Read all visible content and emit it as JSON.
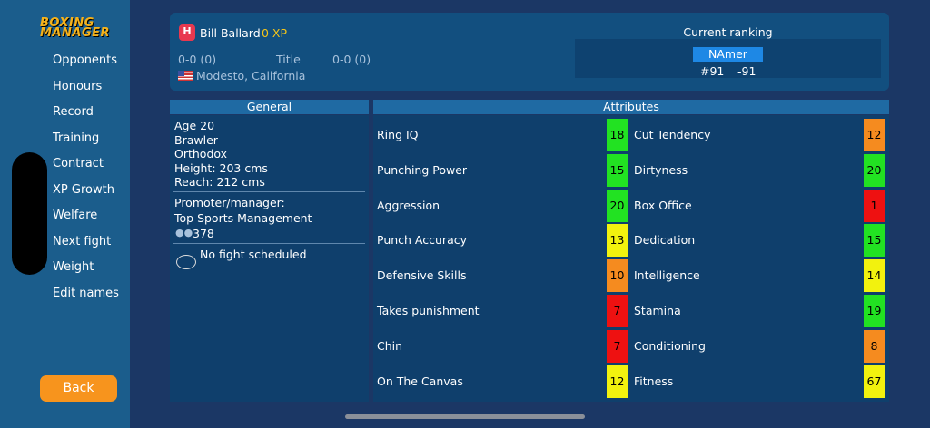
{
  "logo": "BOXING MANAGER",
  "nav": [
    "Opponents",
    "Honours",
    "Record",
    "Training",
    "Contract",
    "XP Growth",
    "Welfare",
    "Next fight",
    "Weight",
    "Edit names"
  ],
  "back_button": "Back",
  "profile": {
    "badge": "H",
    "name": "Bill Ballard",
    "xp": "0 XP",
    "record": "0-0 (0)",
    "title_label": "Title",
    "title_record": "0-0 (0)",
    "location": "Modesto, California"
  },
  "ranking": {
    "title": "Current ranking",
    "region": "NAmer",
    "rank": "#91",
    "change": "-91"
  },
  "general": {
    "header": "General",
    "lines": [
      "Age 20",
      "Brawler",
      "Orthodox",
      "Height: 203 cms",
      "Reach: 212 cms"
    ],
    "promoter_label": "Promoter/manager:",
    "promoter": "Top Sports Management",
    "fans": "378",
    "next_fight": "No fight scheduled"
  },
  "attributes": {
    "header": "Attributes",
    "left": [
      {
        "name": "Ring IQ",
        "value": "18",
        "color": "#22e222"
      },
      {
        "name": "Punching Power",
        "value": "15",
        "color": "#22e222"
      },
      {
        "name": "Aggression",
        "value": "20",
        "color": "#22e222"
      },
      {
        "name": "Punch Accuracy",
        "value": "13",
        "color": "#f2f20e"
      },
      {
        "name": "Defensive Skills",
        "value": "10",
        "color": "#f58b1f"
      },
      {
        "name": "Takes punishment",
        "value": "7",
        "color": "#ee1111"
      },
      {
        "name": "Chin",
        "value": "7",
        "color": "#ee1111"
      },
      {
        "name": "On The Canvas",
        "value": "12",
        "color": "#f2f20e"
      }
    ],
    "right": [
      {
        "name": "Cut Tendency",
        "value": "12",
        "color": "#f58b1f"
      },
      {
        "name": "Dirtyness",
        "value": "20",
        "color": "#22e222"
      },
      {
        "name": "Box Office",
        "value": "1",
        "color": "#ee1111"
      },
      {
        "name": "Dedication",
        "value": "15",
        "color": "#22e222"
      },
      {
        "name": "Intelligence",
        "value": "14",
        "color": "#f2f20e"
      },
      {
        "name": "Stamina",
        "value": "19",
        "color": "#22e222"
      },
      {
        "name": "Conditioning",
        "value": "8",
        "color": "#f58b1f"
      },
      {
        "name": "Fitness",
        "value": "67",
        "color": "#f2f20e"
      }
    ]
  }
}
